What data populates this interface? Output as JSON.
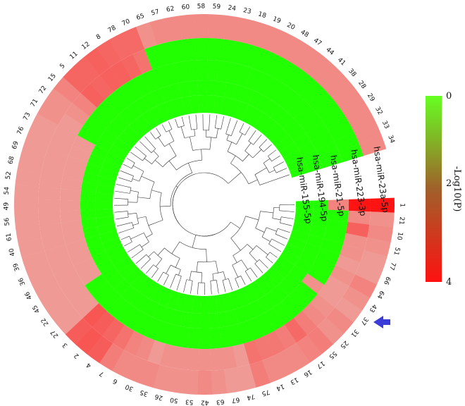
{
  "chart_data": {
    "type": "heatmap",
    "layout": "circular",
    "segments": [
      "1",
      "21",
      "10",
      "51",
      "77",
      "66",
      "64",
      "43",
      "37",
      "31",
      "25",
      "55",
      "17",
      "16",
      "13",
      "14",
      "75",
      "74",
      "67",
      "63",
      "42",
      "53",
      "50",
      "26",
      "35",
      "30",
      "6",
      "7",
      "4",
      "2",
      "3",
      "27",
      "22",
      "45",
      "46",
      "36",
      "39",
      "40",
      "61",
      "56",
      "49",
      "54",
      "52",
      "68",
      "69",
      "76",
      "73",
      "71",
      "72",
      "15",
      "5",
      "11",
      "12",
      "8",
      "78",
      "70",
      "65",
      "57",
      "62",
      "60",
      "58",
      "59",
      "24",
      "23",
      "18",
      "19",
      "20",
      "48",
      "47",
      "44",
      "41",
      "38",
      "28",
      "29",
      "32",
      "33",
      "34"
    ],
    "series": [
      {
        "name": "hsa-miR-23a-5p",
        "values": [
          4.0,
          0.4,
          0.5,
          0.4,
          0.3,
          0.3,
          0.6,
          0.4,
          0.3,
          0.5,
          0.4,
          0.7,
          0.6,
          0.5,
          0.5,
          0.5,
          0.7,
          0.3,
          0.3,
          0.4,
          0.5,
          0.4,
          0.4,
          0.4,
          0.5,
          0.5,
          0.5,
          0.7,
          1.4,
          1.6,
          1.4,
          0.3,
          0.3,
          0.3,
          0.3,
          0.3,
          0.3,
          0.3,
          0.3,
          0.3,
          0.3,
          0.3,
          0.3,
          0.3,
          0.3,
          0.3,
          0.3,
          0.4,
          0.4,
          0.6,
          1.2,
          1.2,
          1.3,
          1.2,
          1.1,
          1.1,
          0.4,
          0.5,
          0.5,
          0.5,
          0.5,
          0.5,
          0.5,
          0.5,
          0.5,
          0.5,
          0.5,
          0.5,
          0.5,
          0.5,
          0.5,
          0.5,
          0.5,
          0.5,
          0.5,
          0.5,
          0.5
        ]
      },
      {
        "name": "hsa-miR-223-3p",
        "values": [
          4.0,
          0.5,
          1.3,
          0.4,
          0.4,
          0.3,
          0.4,
          0.3,
          0.3,
          0.4,
          0.5,
          0.7,
          1.1,
          0.7,
          0.8,
          0.8,
          0.9,
          0.3,
          0.4,
          0.4,
          0.4,
          0.4,
          0.4,
          0.4,
          0.3,
          0.5,
          0.6,
          0.9,
          1.2,
          1.4,
          1.6,
          0.3,
          0.3,
          0.3,
          0.3,
          0.3,
          0.3,
          0.3,
          0.3,
          0.3,
          0.3,
          0.3,
          0.3,
          0.3,
          0.3,
          0.3,
          0.3,
          0.3,
          0.4,
          0.6,
          1.3,
          1.2,
          1.3,
          1.3,
          1.2,
          0.9,
          0,
          0,
          0,
          0,
          0,
          0,
          0,
          0,
          0,
          0,
          0,
          0,
          0,
          0,
          0,
          0,
          0,
          0,
          0,
          0,
          0
        ]
      },
      {
        "name": "hsa-miR-21-5p",
        "values": [
          0.6,
          0,
          0,
          0,
          0,
          0,
          0,
          0,
          0.4,
          0,
          0,
          0,
          0,
          0,
          0,
          0,
          0,
          0,
          0,
          0,
          0,
          0,
          0,
          0,
          0,
          0,
          0,
          0,
          0,
          0,
          0,
          0,
          0,
          0.3,
          0.3,
          0.3,
          0.3,
          0.3,
          0.3,
          0.3,
          0.3,
          0.3,
          0.3,
          0.3,
          0.3,
          0.3,
          0.3,
          0,
          0,
          0,
          0,
          0,
          0,
          0,
          0,
          0,
          0,
          0,
          0,
          0,
          0,
          0,
          0,
          0,
          0,
          0,
          0,
          0,
          0,
          0,
          0,
          0,
          0,
          0,
          0,
          0,
          0
        ]
      },
      {
        "name": "hsa-miR-194-5p",
        "values": [
          0,
          0,
          0,
          0,
          0,
          0,
          0,
          0,
          0,
          0,
          0,
          0,
          0,
          0,
          0,
          0,
          0,
          0,
          0,
          0,
          0,
          0,
          0,
          0,
          0,
          0,
          0,
          0,
          0,
          0,
          0,
          0,
          0,
          0,
          0,
          0,
          0,
          0,
          0,
          0,
          0,
          0,
          0,
          0,
          0,
          0,
          0,
          0,
          0,
          0,
          0,
          0,
          0,
          0,
          0,
          0,
          0,
          0,
          0,
          0,
          0,
          0,
          0,
          0,
          0,
          0,
          0,
          0,
          0,
          0,
          0,
          0,
          0,
          0,
          0,
          0,
          0
        ]
      },
      {
        "name": "hsa-miR-155-5p",
        "values": [
          0,
          0,
          0,
          0,
          0,
          0,
          0,
          0,
          0,
          0,
          0,
          0,
          0,
          0,
          0,
          0,
          0,
          0,
          0,
          0,
          0,
          0,
          0,
          0,
          0,
          0,
          0,
          0,
          0,
          0,
          0,
          0,
          0,
          0,
          0,
          0,
          0,
          0,
          0,
          0,
          0,
          0,
          0,
          0,
          0,
          0,
          0,
          0,
          0,
          0,
          0,
          0,
          0,
          0,
          0,
          0,
          0,
          0,
          0,
          0,
          0,
          0,
          0,
          0,
          0,
          0,
          0,
          0,
          0,
          0,
          0,
          0,
          0,
          0,
          0,
          0,
          0
        ]
      }
    ],
    "colorscale": {
      "min": 0,
      "max": 4,
      "low_color": "#66ff22",
      "high_color": "#ff1111"
    },
    "legend": {
      "title": "-Log10(P)",
      "ticks": [
        "0",
        "2",
        "4"
      ],
      "placement": "right"
    },
    "annotation": {
      "marker": "arrow",
      "color": "#3b3bd8",
      "points_to": "37"
    }
  }
}
